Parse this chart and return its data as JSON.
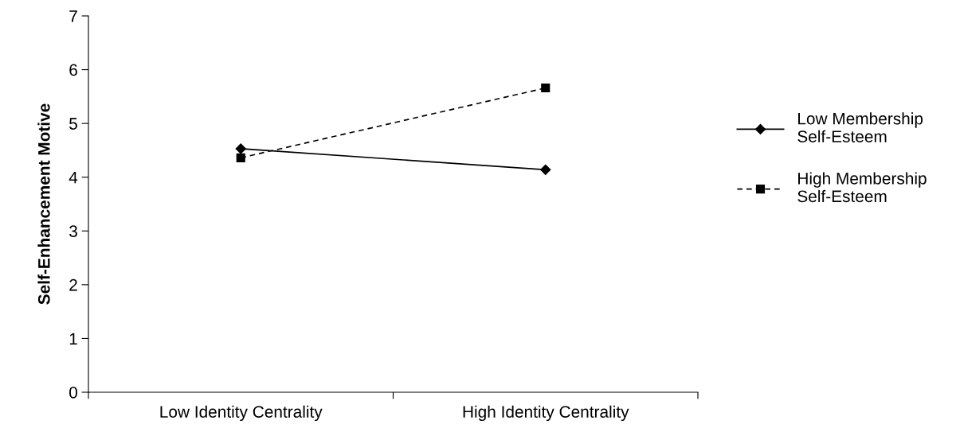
{
  "chart_data": {
    "type": "line",
    "ylabel": "Self-Enhancement Motive",
    "categories": [
      "Low Identity Centrality",
      "High Identity Centrality"
    ],
    "series": [
      {
        "name": "Low Membership\nSelf-Esteem",
        "color": "#000000",
        "values": [
          4.53,
          4.14
        ],
        "marker": "diamond",
        "line_style": "solid"
      },
      {
        "name": "High Membership\nSelf-Esteem",
        "color": "#000000",
        "values": [
          4.36,
          5.66
        ],
        "marker": "square",
        "line_style": "dashed"
      }
    ],
    "ylim": [
      0,
      7
    ],
    "yticks": [
      0,
      1,
      2,
      3,
      4,
      5,
      6,
      7
    ],
    "grid": false,
    "legend": "right"
  }
}
